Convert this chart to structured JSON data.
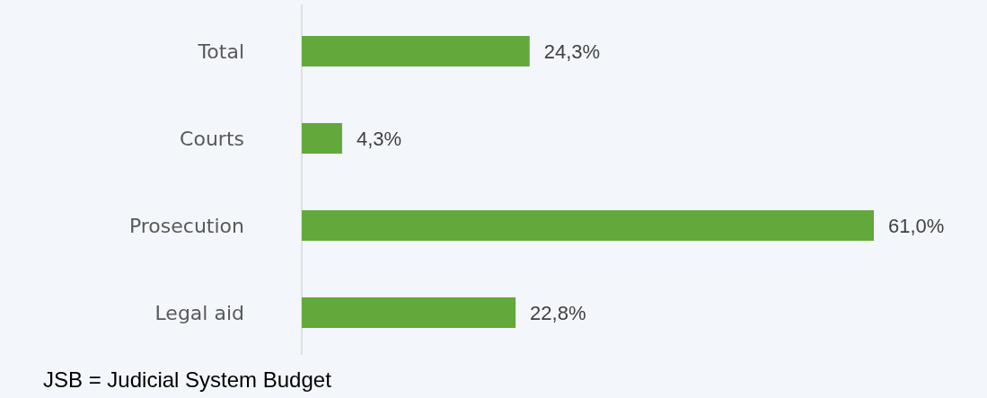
{
  "chart_data": {
    "type": "bar",
    "orientation": "horizontal",
    "categories": [
      "Total",
      "Courts",
      "Prosecution",
      "Legal aid"
    ],
    "values": [
      24.3,
      4.3,
      61.0,
      22.8
    ],
    "value_labels": [
      "24,3%",
      "4,3%",
      "61,0%",
      "22,8%"
    ],
    "color": "#63a83a",
    "annotations": [
      "JSB = Judicial System Budget"
    ]
  }
}
